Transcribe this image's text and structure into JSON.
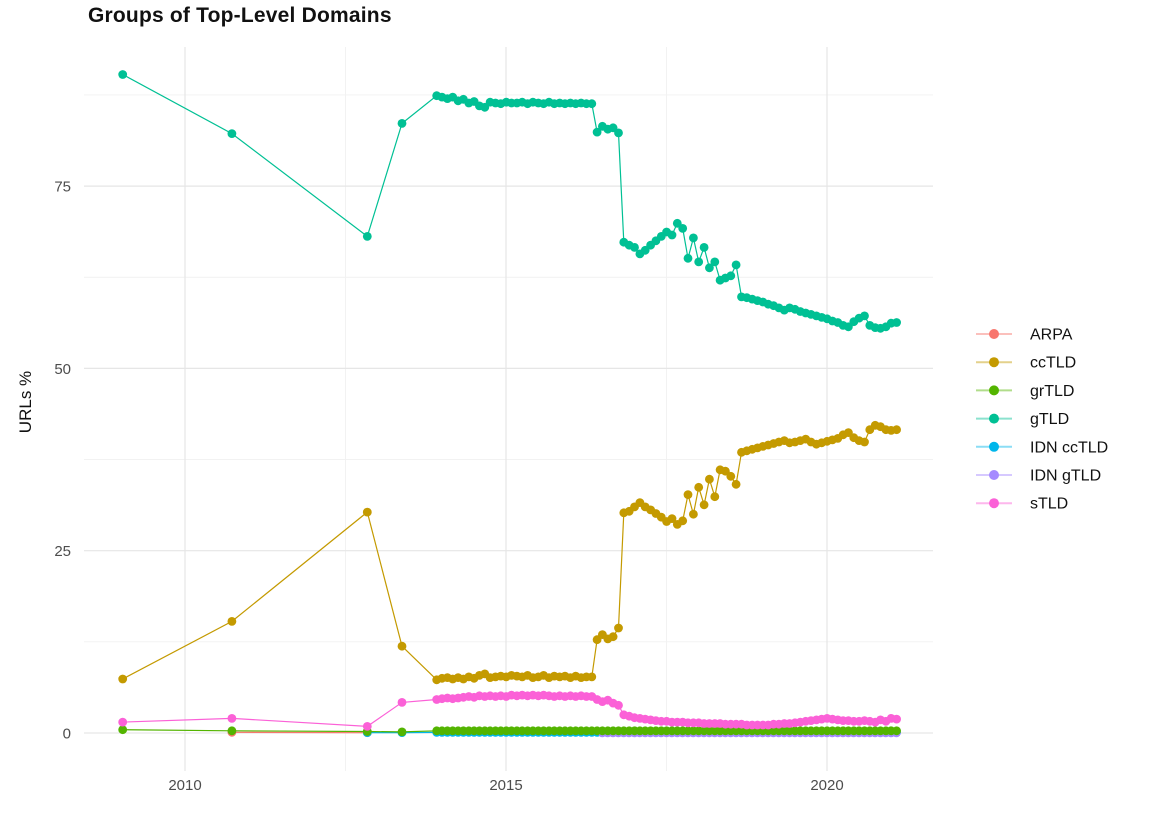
{
  "chart_data": {
    "type": "line",
    "title": "Groups of Top-Level Domains",
    "ylabel": "URLs %",
    "xlabel": "",
    "grid": true,
    "legend_position": "right",
    "x_axis": {
      "ticks": [
        2010,
        2015,
        2020
      ],
      "minor_ticks": [
        2012.5,
        2017.5
      ],
      "range": [
        2008.3,
        2021.75
      ]
    },
    "y_axis": {
      "ticks": [
        0,
        25,
        50,
        75
      ],
      "minor_ticks": [
        12.5,
        37.5,
        62.5,
        87.5
      ],
      "range": [
        -5.2,
        94.1
      ]
    },
    "tick_color": "#4d4d4d",
    "grid_major_color": "#e6e6e6",
    "grid_minor_color": "#f1f1f1",
    "legend": [
      {
        "name": "ARPA",
        "color": "#F8766D"
      },
      {
        "name": "ccTLD",
        "color": "#C49A00"
      },
      {
        "name": "grTLD",
        "color": "#53B400"
      },
      {
        "name": "gTLD",
        "color": "#00C094"
      },
      {
        "name": "IDN ccTLD",
        "color": "#00B6EB"
      },
      {
        "name": "IDN gTLD",
        "color": "#A58AFF"
      },
      {
        "name": "sTLD",
        "color": "#FB61D7"
      }
    ],
    "series": [
      {
        "name": "ARPA",
        "color": "#F8766D",
        "points": [
          [
            2010.73,
            0.1
          ],
          [
            2012.84,
            0.04
          ]
        ]
      },
      {
        "name": "ccTLD",
        "color": "#C49A00",
        "pre": [
          [
            2009.03,
            7.4
          ],
          [
            2010.73,
            15.3
          ],
          [
            2012.84,
            30.3
          ],
          [
            2013.38,
            11.9
          ]
        ],
        "x0": 2013.92,
        "dx": 0.0833,
        "y": [
          7.3,
          7.5,
          7.6,
          7.4,
          7.6,
          7.4,
          7.7,
          7.5,
          7.9,
          8.1,
          7.6,
          7.7,
          7.8,
          7.7,
          7.9,
          7.8,
          7.7,
          7.9,
          7.6,
          7.7,
          7.9,
          7.6,
          7.8,
          7.7,
          7.8,
          7.6,
          7.8,
          7.6,
          7.7,
          7.7,
          12.8,
          13.5,
          12.9,
          13.2,
          14.4,
          30.2,
          30.4,
          31.0,
          31.6,
          31.0,
          30.6,
          30.1,
          29.6,
          29.0,
          29.4,
          28.6,
          29.1,
          32.7,
          30.0,
          33.7,
          31.3,
          34.8,
          32.4,
          36.1,
          35.9,
          35.2,
          34.1,
          38.5,
          38.7,
          38.9,
          39.1,
          39.3,
          39.5,
          39.7,
          39.9,
          40.1,
          39.8,
          39.9,
          40.1,
          40.3,
          39.9,
          39.6,
          39.8,
          40.0,
          40.2,
          40.4,
          40.9,
          41.2,
          40.5,
          40.1,
          39.9,
          41.6,
          42.2,
          42.0,
          41.6,
          41.5,
          41.6
        ]
      },
      {
        "name": "IDN ccTLD",
        "color": "#00B6EB",
        "pre": [
          [
            2012.84,
            0.05
          ],
          [
            2013.38,
            0.05
          ]
        ],
        "x0": 2013.92,
        "dx": 0.0833,
        "n": 87,
        "y_const": 0.08
      },
      {
        "name": "IDN gTLD",
        "color": "#A58AFF",
        "x0": 2016.5,
        "dx": 0.0833,
        "n": 56,
        "y_const": 0.02
      },
      {
        "name": "grTLD",
        "color": "#53B400",
        "pre": [
          [
            2009.03,
            0.45
          ],
          [
            2010.73,
            0.3
          ],
          [
            2012.84,
            0.2
          ],
          [
            2013.38,
            0.15
          ]
        ],
        "x0": 2013.92,
        "dx": 0.0833,
        "n": 87,
        "y_const": 0.3
      },
      {
        "name": "gTLD",
        "color": "#00C094",
        "pre": [
          [
            2009.03,
            90.3
          ],
          [
            2010.73,
            82.2
          ],
          [
            2012.84,
            68.1
          ],
          [
            2013.38,
            83.6
          ]
        ],
        "x0": 2013.92,
        "dx": 0.0833,
        "y": [
          87.4,
          87.2,
          87.0,
          87.2,
          86.7,
          86.9,
          86.4,
          86.6,
          86.0,
          85.8,
          86.5,
          86.4,
          86.3,
          86.5,
          86.4,
          86.4,
          86.5,
          86.3,
          86.5,
          86.4,
          86.3,
          86.5,
          86.3,
          86.4,
          86.3,
          86.4,
          86.3,
          86.4,
          86.3,
          86.3,
          82.4,
          83.2,
          82.8,
          83.0,
          82.3,
          67.3,
          66.9,
          66.6,
          65.7,
          66.2,
          66.9,
          67.5,
          68.1,
          68.7,
          68.3,
          69.9,
          69.2,
          65.1,
          67.9,
          64.6,
          66.6,
          63.8,
          64.6,
          62.1,
          62.4,
          62.7,
          64.2,
          59.8,
          59.7,
          59.5,
          59.3,
          59.1,
          58.8,
          58.6,
          58.3,
          58.0,
          58.3,
          58.1,
          57.8,
          57.6,
          57.4,
          57.2,
          57.0,
          56.8,
          56.5,
          56.3,
          55.9,
          55.7,
          56.4,
          56.9,
          57.2,
          55.9,
          55.6,
          55.5,
          55.7,
          56.2,
          56.3
        ]
      },
      {
        "name": "sTLD",
        "color": "#FB61D7",
        "pre": [
          [
            2009.03,
            1.5
          ],
          [
            2010.73,
            2.0
          ],
          [
            2012.84,
            0.9
          ],
          [
            2013.38,
            4.2
          ]
        ],
        "x0": 2013.92,
        "dx": 0.0833,
        "y": [
          4.6,
          4.7,
          4.8,
          4.7,
          4.8,
          4.9,
          5.0,
          4.9,
          5.1,
          5.0,
          5.1,
          5.0,
          5.1,
          5.0,
          5.2,
          5.1,
          5.2,
          5.1,
          5.2,
          5.1,
          5.2,
          5.1,
          5.0,
          5.1,
          5.0,
          5.1,
          5.0,
          5.1,
          5.0,
          5.0,
          4.6,
          4.3,
          4.5,
          4.1,
          3.8,
          2.5,
          2.3,
          2.1,
          2.0,
          1.9,
          1.8,
          1.7,
          1.6,
          1.6,
          1.5,
          1.5,
          1.5,
          1.4,
          1.4,
          1.4,
          1.3,
          1.3,
          1.3,
          1.3,
          1.2,
          1.2,
          1.2,
          1.2,
          1.1,
          1.1,
          1.1,
          1.1,
          1.1,
          1.2,
          1.2,
          1.3,
          1.3,
          1.4,
          1.5,
          1.6,
          1.7,
          1.8,
          1.9,
          2.0,
          1.9,
          1.8,
          1.7,
          1.7,
          1.6,
          1.6,
          1.7,
          1.6,
          1.5,
          1.8,
          1.6,
          2.0,
          1.9
        ]
      }
    ]
  }
}
